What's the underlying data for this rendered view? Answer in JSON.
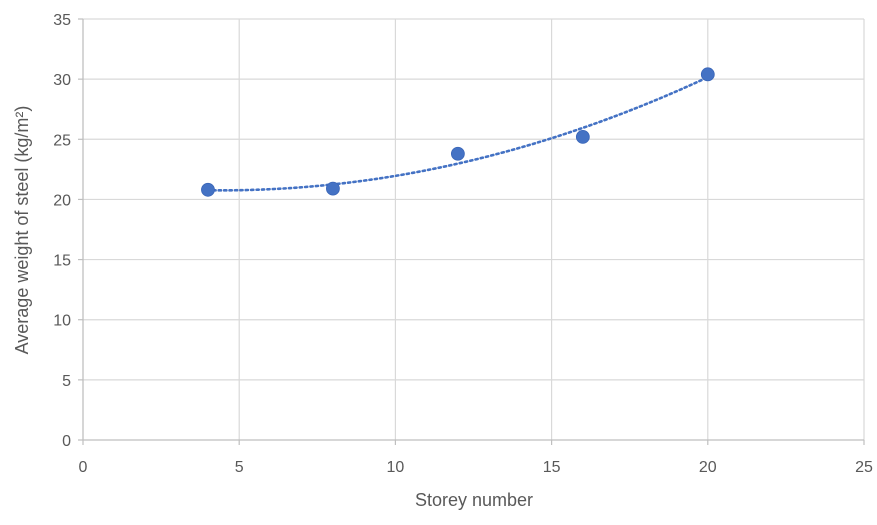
{
  "chart_data": {
    "type": "scatter",
    "title": "",
    "xlabel": "Storey number",
    "ylabel": "Average weight of steel (kg/m²)",
    "xlim": [
      0,
      25
    ],
    "ylim": [
      0,
      35
    ],
    "xticks": [
      0,
      5,
      10,
      15,
      20,
      25
    ],
    "yticks": [
      0,
      5,
      10,
      15,
      20,
      25,
      30,
      35
    ],
    "grid": true,
    "legend": "none",
    "series": [
      {
        "x": [
          4,
          8,
          12,
          16,
          20
        ],
        "y": [
          20.8,
          20.9,
          23.8,
          25.2,
          30.4
        ],
        "color": "#4472c4",
        "trendline": "polynomial",
        "trendline_style": "dotted"
      }
    ]
  }
}
